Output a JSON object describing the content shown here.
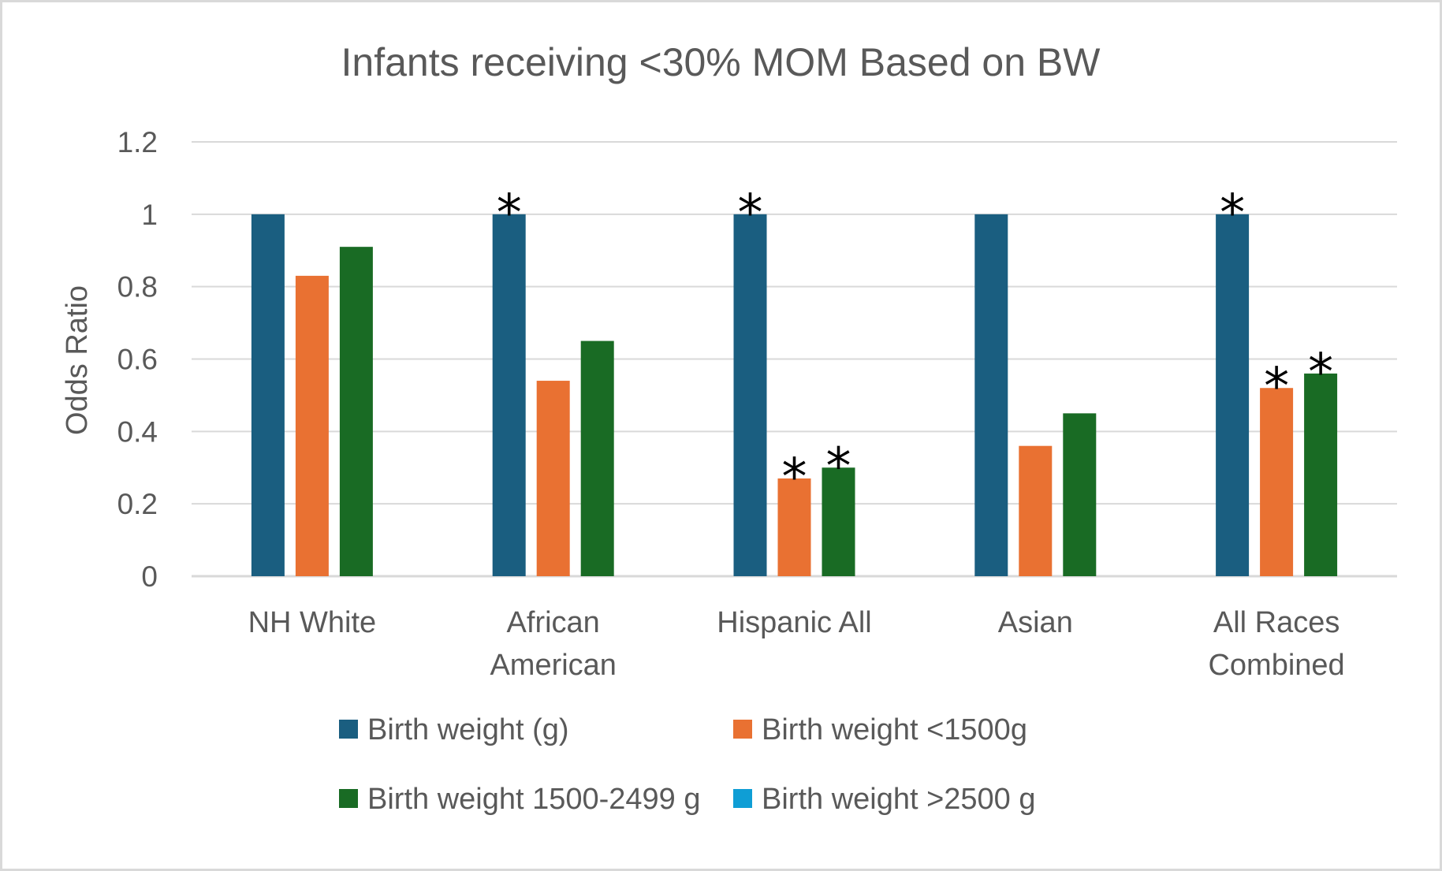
{
  "chart_data": {
    "type": "bar",
    "title": "Infants receiving <30% MOM Based on BW",
    "xlabel": "",
    "ylabel": "Odds Ratio",
    "ylim": [
      0,
      1.2
    ],
    "yticks": [
      "0",
      "0.2",
      "0.4",
      "0.6",
      "0.8",
      "1",
      "1.2"
    ],
    "grid": true,
    "legend_position": "bottom",
    "categories": [
      [
        "NH White"
      ],
      [
        "African",
        "American"
      ],
      [
        "Hispanic All"
      ],
      [
        "Asian"
      ],
      [
        "All Races",
        "Combined"
      ]
    ],
    "series": [
      {
        "name": "Birth weight (g)",
        "color": "#1a5e80",
        "values": [
          1,
          1,
          1,
          1,
          1
        ]
      },
      {
        "name": "Birth weight <1500g",
        "color": "#e97132",
        "values": [
          0.83,
          0.54,
          0.27,
          0.36,
          0.52
        ]
      },
      {
        "name": "Birth weight 1500-2499 g",
        "color": "#196b24",
        "values": [
          0.91,
          0.65,
          0.3,
          0.45,
          0.56
        ]
      },
      {
        "name": "Birth weight >2500 g",
        "color": "#0f9ed5",
        "values": [
          null,
          null,
          null,
          null,
          null
        ]
      }
    ],
    "annotations": [
      {
        "text": "*",
        "category_index": 1,
        "series_index": 0
      },
      {
        "text": "*",
        "category_index": 2,
        "series_index": 0
      },
      {
        "text": "*",
        "category_index": 2,
        "series_index": 1
      },
      {
        "text": "*",
        "category_index": 2,
        "series_index": 2
      },
      {
        "text": "*",
        "category_index": 4,
        "series_index": 0
      },
      {
        "text": "*",
        "category_index": 4,
        "series_index": 1
      },
      {
        "text": "*",
        "category_index": 4,
        "series_index": 2
      }
    ]
  }
}
